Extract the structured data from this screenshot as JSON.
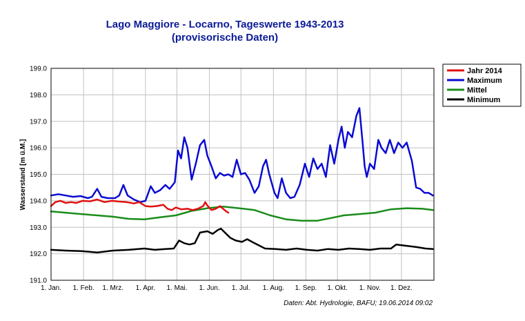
{
  "chart_data": {
    "type": "line",
    "title": "Lago Maggiore - Locarno, Tageswerte 1943-2013",
    "subtitle": "(provisorische Daten)",
    "ylabel": "Wasserstand [m ü.M.]",
    "xlabel": "",
    "source": "Daten: Abt. Hydrologie, BAFU; 19.06.2014 09:02",
    "ylim": [
      191.0,
      199.0
    ],
    "y_ticks": [
      "191.0",
      "192.0",
      "193.0",
      "194.0",
      "195.0",
      "196.0",
      "197.0",
      "198.0",
      "199.0"
    ],
    "x_ticks": [
      "1. Jan.",
      "1. Feb.",
      "1. Mrz.",
      "1. Apr.",
      "1. Mai.",
      "1. Jun.",
      "1. Jul.",
      "1. Aug.",
      "1. Sep.",
      "1. Okt.",
      "1. Nov.",
      "1. Dez."
    ],
    "grid": true,
    "legend_position": "top-right",
    "series": [
      {
        "name": "Jahr 2014",
        "color": "#e01010",
        "points": [
          [
            1,
            193.8
          ],
          [
            5,
            193.95
          ],
          [
            10,
            194.0
          ],
          [
            15,
            193.92
          ],
          [
            20,
            193.95
          ],
          [
            25,
            193.92
          ],
          [
            31,
            194.0
          ],
          [
            38,
            193.98
          ],
          [
            45,
            194.05
          ],
          [
            52,
            193.95
          ],
          [
            59,
            194.0
          ],
          [
            66,
            193.97
          ],
          [
            73,
            193.95
          ],
          [
            80,
            193.9
          ],
          [
            85,
            193.95
          ],
          [
            91,
            193.8
          ],
          [
            96,
            193.78
          ],
          [
            102,
            193.8
          ],
          [
            108,
            193.85
          ],
          [
            112,
            193.7
          ],
          [
            116,
            193.65
          ],
          [
            120,
            193.75
          ],
          [
            125,
            193.68
          ],
          [
            131,
            193.7
          ],
          [
            136,
            193.65
          ],
          [
            141,
            193.7
          ],
          [
            146,
            193.8
          ],
          [
            148,
            193.95
          ],
          [
            150,
            193.82
          ],
          [
            154,
            193.65
          ],
          [
            158,
            193.7
          ],
          [
            162,
            193.8
          ],
          [
            165,
            193.7
          ],
          [
            168,
            193.6
          ],
          [
            170,
            193.55
          ]
        ]
      },
      {
        "name": "Maximum",
        "color": "#0a0ad2",
        "points": [
          [
            1,
            194.2
          ],
          [
            8,
            194.25
          ],
          [
            15,
            194.2
          ],
          [
            22,
            194.15
          ],
          [
            29,
            194.18
          ],
          [
            36,
            194.1
          ],
          [
            40,
            194.15
          ],
          [
            45,
            194.45
          ],
          [
            49,
            194.15
          ],
          [
            55,
            194.1
          ],
          [
            62,
            194.1
          ],
          [
            66,
            194.2
          ],
          [
            70,
            194.6
          ],
          [
            74,
            194.2
          ],
          [
            80,
            194.05
          ],
          [
            86,
            193.95
          ],
          [
            91,
            194.0
          ],
          [
            96,
            194.55
          ],
          [
            100,
            194.3
          ],
          [
            105,
            194.4
          ],
          [
            110,
            194.6
          ],
          [
            114,
            194.45
          ],
          [
            119,
            194.7
          ],
          [
            122,
            195.9
          ],
          [
            125,
            195.6
          ],
          [
            128,
            196.4
          ],
          [
            131,
            196.0
          ],
          [
            135,
            194.8
          ],
          [
            139,
            195.4
          ],
          [
            143,
            196.1
          ],
          [
            147,
            196.3
          ],
          [
            150,
            195.7
          ],
          [
            154,
            195.3
          ],
          [
            158,
            194.85
          ],
          [
            162,
            195.05
          ],
          [
            166,
            194.95
          ],
          [
            170,
            195.0
          ],
          [
            174,
            194.9
          ],
          [
            178,
            195.55
          ],
          [
            182,
            195.0
          ],
          [
            186,
            195.05
          ],
          [
            190,
            194.8
          ],
          [
            195,
            194.3
          ],
          [
            199,
            194.55
          ],
          [
            203,
            195.3
          ],
          [
            206,
            195.55
          ],
          [
            209,
            195.0
          ],
          [
            214,
            194.3
          ],
          [
            217,
            194.1
          ],
          [
            221,
            194.85
          ],
          [
            225,
            194.3
          ],
          [
            229,
            194.1
          ],
          [
            233,
            194.15
          ],
          [
            238,
            194.6
          ],
          [
            243,
            195.4
          ],
          [
            247,
            194.9
          ],
          [
            251,
            195.6
          ],
          [
            255,
            195.2
          ],
          [
            259,
            195.4
          ],
          [
            263,
            194.9
          ],
          [
            267,
            196.1
          ],
          [
            271,
            195.4
          ],
          [
            275,
            196.3
          ],
          [
            278,
            196.8
          ],
          [
            281,
            196.0
          ],
          [
            284,
            196.6
          ],
          [
            288,
            196.4
          ],
          [
            292,
            197.2
          ],
          [
            295,
            197.5
          ],
          [
            298,
            196.2
          ],
          [
            300,
            195.3
          ],
          [
            302,
            194.9
          ],
          [
            305,
            195.4
          ],
          [
            309,
            195.2
          ],
          [
            313,
            196.3
          ],
          [
            316,
            196.0
          ],
          [
            320,
            195.8
          ],
          [
            324,
            196.3
          ],
          [
            328,
            195.8
          ],
          [
            332,
            196.2
          ],
          [
            336,
            196.0
          ],
          [
            340,
            196.2
          ],
          [
            345,
            195.5
          ],
          [
            349,
            194.5
          ],
          [
            353,
            194.45
          ],
          [
            357,
            194.3
          ],
          [
            361,
            194.3
          ],
          [
            365,
            194.2
          ]
        ]
      },
      {
        "name": "Mittel",
        "color": "#1a8c1a",
        "points": [
          [
            1,
            193.6
          ],
          [
            15,
            193.55
          ],
          [
            30,
            193.5
          ],
          [
            45,
            193.45
          ],
          [
            60,
            193.4
          ],
          [
            75,
            193.32
          ],
          [
            90,
            193.3
          ],
          [
            105,
            193.38
          ],
          [
            120,
            193.45
          ],
          [
            135,
            193.62
          ],
          [
            150,
            193.72
          ],
          [
            165,
            193.78
          ],
          [
            180,
            193.72
          ],
          [
            195,
            193.65
          ],
          [
            210,
            193.45
          ],
          [
            225,
            193.3
          ],
          [
            240,
            193.25
          ],
          [
            255,
            193.25
          ],
          [
            268,
            193.35
          ],
          [
            280,
            193.45
          ],
          [
            295,
            193.5
          ],
          [
            310,
            193.55
          ],
          [
            325,
            193.68
          ],
          [
            340,
            193.72
          ],
          [
            355,
            193.7
          ],
          [
            365,
            193.65
          ]
        ]
      },
      {
        "name": "Minimum",
        "color": "#000000",
        "points": [
          [
            1,
            192.15
          ],
          [
            15,
            192.12
          ],
          [
            30,
            192.1
          ],
          [
            45,
            192.05
          ],
          [
            60,
            192.12
          ],
          [
            75,
            192.15
          ],
          [
            90,
            192.2
          ],
          [
            100,
            192.15
          ],
          [
            110,
            192.18
          ],
          [
            118,
            192.2
          ],
          [
            123,
            192.5
          ],
          [
            128,
            192.4
          ],
          [
            133,
            192.35
          ],
          [
            138,
            192.4
          ],
          [
            143,
            192.8
          ],
          [
            150,
            192.85
          ],
          [
            155,
            192.75
          ],
          [
            160,
            192.9
          ],
          [
            163,
            192.95
          ],
          [
            168,
            192.75
          ],
          [
            172,
            192.6
          ],
          [
            177,
            192.5
          ],
          [
            183,
            192.45
          ],
          [
            188,
            192.55
          ],
          [
            195,
            192.4
          ],
          [
            205,
            192.2
          ],
          [
            215,
            192.18
          ],
          [
            225,
            192.15
          ],
          [
            235,
            192.2
          ],
          [
            245,
            192.15
          ],
          [
            255,
            192.12
          ],
          [
            265,
            192.18
          ],
          [
            275,
            192.15
          ],
          [
            285,
            192.2
          ],
          [
            295,
            192.18
          ],
          [
            305,
            192.15
          ],
          [
            315,
            192.2
          ],
          [
            325,
            192.2
          ],
          [
            330,
            192.35
          ],
          [
            340,
            192.3
          ],
          [
            350,
            192.25
          ],
          [
            358,
            192.2
          ],
          [
            365,
            192.18
          ]
        ]
      }
    ]
  }
}
